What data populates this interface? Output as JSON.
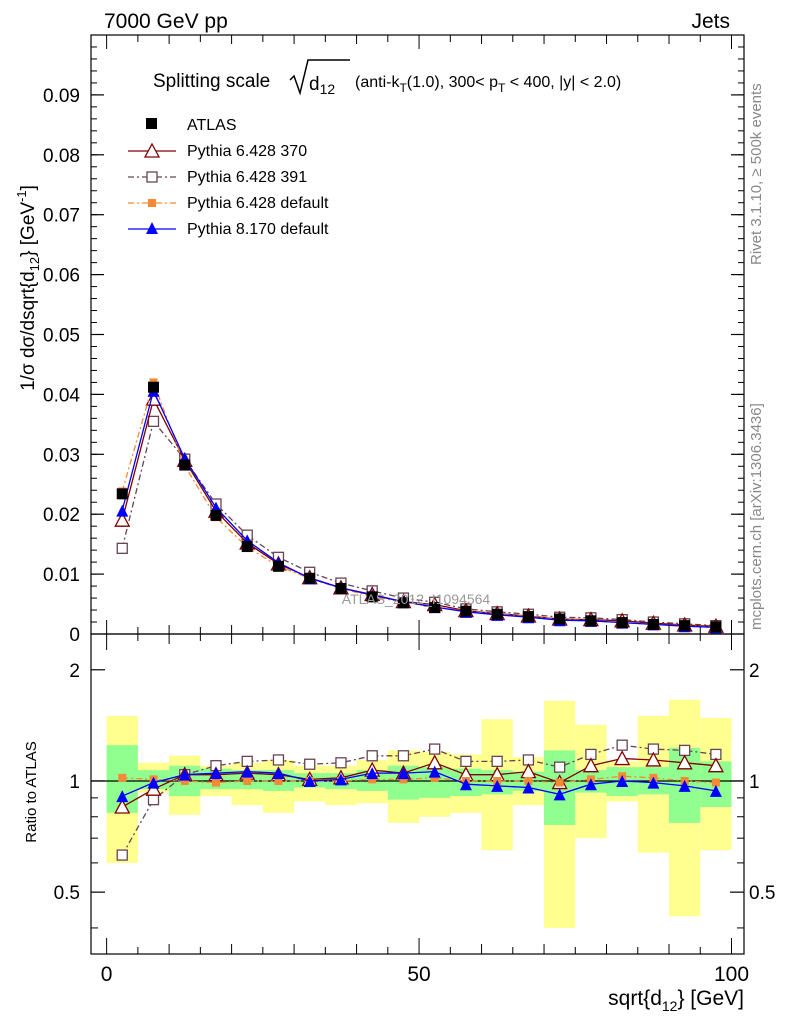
{
  "header": {
    "left": "7000 GeV pp",
    "right": "Jets"
  },
  "side_labels": {
    "rivet": "Rivet 3.1.10, ≥ 500k events",
    "mcplots": "mcplots.cern.ch [arXiv:1306.3436]"
  },
  "chart_data": [
    {
      "type": "line",
      "title": "Splitting scale √d12 (anti-kT(1.0), 300< pT < 400, |y| < 2.0)",
      "title_parts": {
        "lead": "Splitting scale",
        "sym": "d",
        "sym_sub": "12",
        "paren_a": "(anti-k",
        "paren_a_sub": "T",
        "paren_b": "(1.0), 300< p",
        "paren_b_sub": "T",
        "paren_c": " < 400, |y| < 2.0)"
      },
      "watermark": "ATLAS_2012_I1094564",
      "ylabel": "1/σ dσ/dsqrt{d12} [GeV⁻¹]",
      "ylabel_parts": {
        "a": "1/σ dσ/dsqrt{d",
        "sub": "12",
        "b": "} [GeV",
        "sup": "-1",
        "c": "]"
      },
      "xlim": [
        -2.5,
        102
      ],
      "ylim": [
        0,
        0.1
      ],
      "yticks": [
        0.01,
        0.02,
        0.03,
        0.04,
        0.05,
        0.06,
        0.07,
        0.08,
        0.09
      ],
      "ytick_labels": [
        "0.01",
        "0.02",
        "0.03",
        "0.04",
        "0.05",
        "0.06",
        "0.07",
        "0.08",
        "0.09"
      ],
      "ybottom_label": "0",
      "legend_position": "top-left",
      "x": [
        2.5,
        7.5,
        12.5,
        17.5,
        22.5,
        27.5,
        32.5,
        37.5,
        42.5,
        47.5,
        52.5,
        57.5,
        62.5,
        67.5,
        72.5,
        77.5,
        82.5,
        87.5,
        92.5,
        97.5
      ],
      "series": [
        {
          "name": "ATLAS",
          "color": "#000000",
          "marker": "square-filled",
          "values": [
            0.0234,
            0.0412,
            0.0282,
            0.0198,
            0.0146,
            0.0113,
            0.0093,
            0.0076,
            0.0062,
            0.0052,
            0.0044,
            0.0038,
            0.0033,
            0.0029,
            0.0025,
            0.0022,
            0.0019,
            0.0016,
            0.0014,
            0.0012
          ]
        },
        {
          "name": "Pythia 6.428 370",
          "color": "#800000",
          "marker": "triangle-open",
          "values": [
            0.019,
            0.0392,
            0.029,
            0.0205,
            0.0152,
            0.0117,
            0.0094,
            0.0077,
            0.0066,
            0.0054,
            0.0049,
            0.0039,
            0.0034,
            0.003,
            0.0025,
            0.0024,
            0.0022,
            0.0018,
            0.0015,
            0.0013
          ]
        },
        {
          "name": "Pythia 6.428 391",
          "color": "#664455",
          "marker": "square-open",
          "values": [
            0.0143,
            0.0355,
            0.0292,
            0.0217,
            0.0165,
            0.0128,
            0.0103,
            0.0085,
            0.0072,
            0.006,
            0.0053,
            0.0042,
            0.0037,
            0.0033,
            0.0028,
            0.0027,
            0.0024,
            0.002,
            0.0017,
            0.0014
          ]
        },
        {
          "name": "Pythia 6.428 default",
          "color": "#f48a35",
          "marker": "square-filled",
          "values": [
            0.0238,
            0.042,
            0.0281,
            0.0195,
            0.0145,
            0.0113,
            0.0093,
            0.0076,
            0.0063,
            0.0053,
            0.0045,
            0.0038,
            0.0033,
            0.0029,
            0.0025,
            0.0022,
            0.0019,
            0.0016,
            0.0014,
            0.0012
          ]
        },
        {
          "name": "Pythia 8.170 default",
          "color": "#0000ff",
          "marker": "triangle-filled",
          "values": [
            0.0206,
            0.0406,
            0.0293,
            0.0211,
            0.0156,
            0.0119,
            0.0093,
            0.0077,
            0.0065,
            0.0054,
            0.0045,
            0.0037,
            0.0032,
            0.0028,
            0.0023,
            0.0022,
            0.0019,
            0.0016,
            0.0013,
            0.0011
          ]
        }
      ]
    },
    {
      "type": "line",
      "ylabel": "Ratio to ATLAS",
      "xlabel": "sqrt{d12} [GeV]",
      "xlabel_parts": {
        "a": "sqrt{d",
        "sub": "12",
        "b": "} [GeV]"
      },
      "xlim": [
        -2.5,
        102
      ],
      "ylim": [
        0.34,
        2.5
      ],
      "xticks": [
        0,
        50,
        100
      ],
      "xtick_labels": [
        "0",
        "50",
        "100"
      ],
      "yticks": [
        0.5,
        1,
        2
      ],
      "ytick_labels": [
        "0.5",
        "1",
        "2"
      ],
      "bin_edges": [
        0,
        5,
        10,
        15,
        20,
        25,
        30,
        35,
        40,
        45,
        50,
        55,
        60,
        65,
        70,
        75,
        80,
        85,
        90,
        95,
        100
      ],
      "band_colors": {
        "stat": "#90ff90",
        "total": "#ffff90"
      },
      "stat_band": [
        [
          0.82,
          1.25
        ],
        [
          0.95,
          1.07
        ],
        [
          0.91,
          1.1
        ],
        [
          0.95,
          1.08
        ],
        [
          0.95,
          1.07
        ],
        [
          0.94,
          1.07
        ],
        [
          0.96,
          1.05
        ],
        [
          0.95,
          1.05
        ],
        [
          0.94,
          1.07
        ],
        [
          0.89,
          1.1
        ],
        [
          0.9,
          1.09
        ],
        [
          0.91,
          1.08
        ],
        [
          0.92,
          1.07
        ],
        [
          0.94,
          1.06
        ],
        [
          0.76,
          1.21
        ],
        [
          0.93,
          1.07
        ],
        [
          0.91,
          1.09
        ],
        [
          0.92,
          1.09
        ],
        [
          0.77,
          1.23
        ],
        [
          0.85,
          1.13
        ]
      ],
      "total_band": [
        [
          0.6,
          1.5
        ],
        [
          0.93,
          1.12
        ],
        [
          0.81,
          1.17
        ],
        [
          0.91,
          1.1
        ],
        [
          0.86,
          1.12
        ],
        [
          0.82,
          1.14
        ],
        [
          0.88,
          1.1
        ],
        [
          0.86,
          1.1
        ],
        [
          0.87,
          1.14
        ],
        [
          0.77,
          1.21
        ],
        [
          0.8,
          1.2
        ],
        [
          0.82,
          1.18
        ],
        [
          0.65,
          1.47
        ],
        [
          0.86,
          1.16
        ],
        [
          0.4,
          1.65
        ],
        [
          0.7,
          1.42
        ],
        [
          0.88,
          1.13
        ],
        [
          0.64,
          1.5
        ],
        [
          0.43,
          1.66
        ],
        [
          0.65,
          1.48
        ]
      ],
      "series": [
        {
          "name": "Pythia 6.428 370",
          "color": "#800000",
          "marker": "triangle-open",
          "values": [
            0.85,
            0.95,
            1.04,
            1.04,
            1.05,
            1.04,
            1.01,
            1.02,
            1.07,
            1.05,
            1.12,
            1.04,
            1.04,
            1.06,
            0.99,
            1.1,
            1.15,
            1.14,
            1.12,
            1.1
          ]
        },
        {
          "name": "Pythia 6.428 391",
          "color": "#664455",
          "marker": "square-open",
          "values": [
            0.63,
            0.89,
            1.04,
            1.1,
            1.13,
            1.14,
            1.11,
            1.12,
            1.17,
            1.17,
            1.22,
            1.13,
            1.13,
            1.14,
            1.09,
            1.18,
            1.25,
            1.22,
            1.21,
            1.18
          ]
        },
        {
          "name": "Pythia 6.428 default",
          "color": "#f48a35",
          "marker": "square-filled",
          "values": [
            1.02,
            1.01,
            1.0,
            0.99,
            1.0,
            1.0,
            1.0,
            1.0,
            1.01,
            1.01,
            1.02,
            1.0,
            1.0,
            1.0,
            0.99,
            1.01,
            1.03,
            1.02,
            1.0,
            0.99
          ]
        },
        {
          "name": "Pythia 8.170 default",
          "color": "#0000ff",
          "marker": "triangle-filled",
          "values": [
            0.91,
            0.99,
            1.04,
            1.05,
            1.06,
            1.05,
            1.0,
            1.01,
            1.05,
            1.05,
            1.06,
            0.98,
            0.97,
            0.96,
            0.92,
            0.98,
            1.0,
            0.99,
            0.97,
            0.94
          ]
        }
      ]
    }
  ]
}
